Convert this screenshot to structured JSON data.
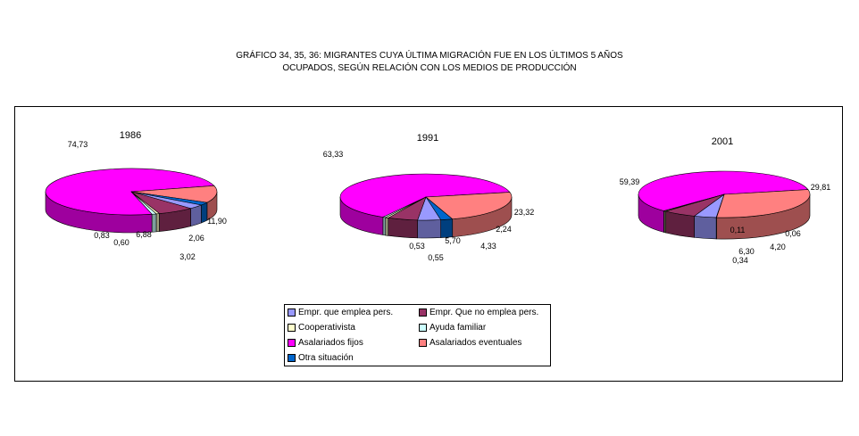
{
  "title": {
    "line1": "GRÁFICO 34, 35, 36: MIGRANTES CUYA ÚLTIMA MIGRACIÓN FUE EN LOS ÚLTIMOS 5 AÑOS",
    "line2": "OCUPADOS, SEGÚN RELACIÓN CON LOS MEDIOS DE PRODUCCIÓN"
  },
  "legend": [
    {
      "key": "empr_emplea",
      "label": "Empr. que emplea pers."
    },
    {
      "key": "empr_no_emplea",
      "label": "Empr. Que no emplea pers."
    },
    {
      "key": "cooperativista",
      "label": "Cooperativista"
    },
    {
      "key": "ayuda_familiar",
      "label": "Ayuda familiar"
    },
    {
      "key": "asal_fijos",
      "label": "Asalariados fijos"
    },
    {
      "key": "asal_eventuales",
      "label": "Asalariados eventuales"
    },
    {
      "key": "otra",
      "label": "Otra situación"
    }
  ],
  "colors": {
    "empr_emplea": "#9999ff",
    "empr_no_emplea": "#993366",
    "cooperativista": "#ffffcc",
    "ayuda_familiar": "#ccffff",
    "asal_fijos": "#ff00ff",
    "asal_eventuales": "#ff8080",
    "otra": "#0066cc"
  },
  "chart_data": [
    {
      "type": "pie",
      "title": "1986",
      "slices": [
        {
          "key": "asal_fijos",
          "value": 74.73,
          "label": "74,73"
        },
        {
          "key": "asal_eventuales",
          "value": 11.9,
          "label": "11,90"
        },
        {
          "key": "otra",
          "value": 2.06,
          "label": "2,06"
        },
        {
          "key": "empr_emplea",
          "value": 3.02,
          "label": "3,02"
        },
        {
          "key": "empr_no_emplea",
          "value": 6.88,
          "label": "6,88"
        },
        {
          "key": "cooperativista",
          "value": 0.6,
          "label": "0,60"
        },
        {
          "key": "ayuda_familiar",
          "value": 0.83,
          "label": "0,83"
        }
      ]
    },
    {
      "type": "pie",
      "title": "1991",
      "slices": [
        {
          "key": "asal_fijos",
          "value": 63.33,
          "label": "63,33"
        },
        {
          "key": "asal_eventuales",
          "value": 23.32,
          "label": "23,32"
        },
        {
          "key": "otra",
          "value": 2.24,
          "label": "2,24"
        },
        {
          "key": "empr_emplea",
          "value": 4.33,
          "label": "4,33"
        },
        {
          "key": "empr_no_emplea",
          "value": 5.7,
          "label": "5,70"
        },
        {
          "key": "cooperativista",
          "value": 0.55,
          "label": "0,55"
        },
        {
          "key": "ayuda_familiar",
          "value": 0.53,
          "label": "0,53"
        }
      ]
    },
    {
      "type": "pie",
      "title": "2001",
      "slices": [
        {
          "key": "asal_fijos",
          "value": 59.39,
          "label": "59,39"
        },
        {
          "key": "asal_eventuales",
          "value": 29.81,
          "label": "29,81"
        },
        {
          "key": "otra",
          "value": 0.06,
          "label": "0,06"
        },
        {
          "key": "empr_emplea",
          "value": 4.2,
          "label": "4,20"
        },
        {
          "key": "empr_no_emplea",
          "value": 6.3,
          "label": "6,30"
        },
        {
          "key": "cooperativista",
          "value": 0.34,
          "label": "0,34"
        },
        {
          "key": "ayuda_familiar",
          "value": 0.11,
          "label": "0,11"
        }
      ]
    }
  ]
}
